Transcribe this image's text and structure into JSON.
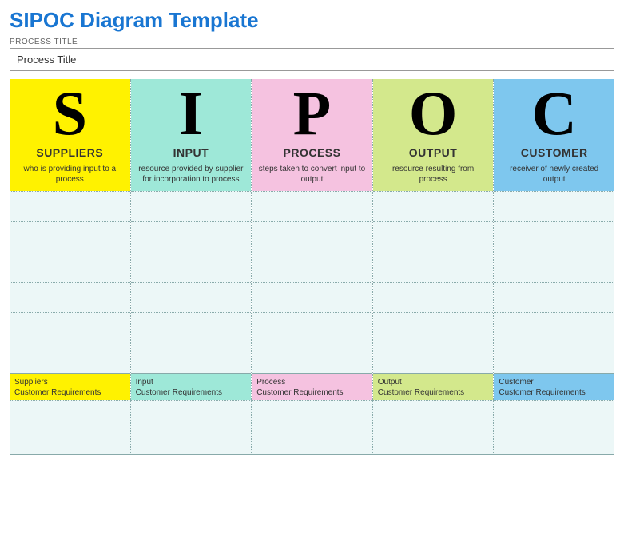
{
  "title": "SIPOC Diagram Template",
  "process_label": "PROCESS TITLE",
  "process_value": "Process Title",
  "body_row_count": 6,
  "body_cell_bg": "#ecf7f7",
  "colors": {
    "title": "#1976d2",
    "border": "#97acac",
    "dotted": "#97acac"
  },
  "columns": [
    {
      "letter": "S",
      "name": "SUPPLIERS",
      "desc": "who is providing input to a process",
      "header_bg": "#fff200",
      "footer_bg": "#fff200",
      "footer_line1": "Suppliers",
      "footer_line2": "Customer Requirements"
    },
    {
      "letter": "I",
      "name": "INPUT",
      "desc": "resource provided by supplier for incorporation to process",
      "header_bg": "#9ee8d8",
      "footer_bg": "#9ee8d8",
      "footer_line1": "Input",
      "footer_line2": "Customer Requirements"
    },
    {
      "letter": "P",
      "name": "PROCESS",
      "desc": "steps taken to convert input to output",
      "header_bg": "#f5c2e0",
      "footer_bg": "#f5c2e0",
      "footer_line1": "Process",
      "footer_line2": "Customer Requirements"
    },
    {
      "letter": "O",
      "name": "OUTPUT",
      "desc": "resource resulting from process",
      "header_bg": "#d3e88c",
      "footer_bg": "#d3e88c",
      "footer_line1": "Output",
      "footer_line2": "Customer Requirements"
    },
    {
      "letter": "C",
      "name": "CUSTOMER",
      "desc": "receiver of newly created output",
      "header_bg": "#7ec7ee",
      "footer_bg": "#7ec7ee",
      "footer_line1": "Customer",
      "footer_line2": "Customer Requirements"
    }
  ]
}
